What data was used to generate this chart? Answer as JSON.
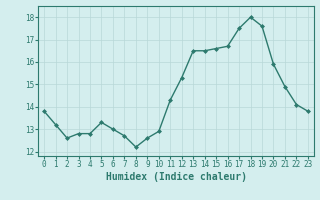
{
  "x": [
    0,
    1,
    2,
    3,
    4,
    5,
    6,
    7,
    8,
    9,
    10,
    11,
    12,
    13,
    14,
    15,
    16,
    17,
    18,
    19,
    20,
    21,
    22,
    23
  ],
  "y": [
    13.8,
    13.2,
    12.6,
    12.8,
    12.8,
    13.3,
    13.0,
    12.7,
    12.2,
    12.6,
    12.9,
    14.3,
    15.3,
    16.5,
    16.5,
    16.6,
    16.7,
    17.5,
    18.0,
    17.6,
    15.9,
    14.9,
    14.1,
    13.8
  ],
  "line_color": "#2d7a6e",
  "marker": "D",
  "markersize": 2.0,
  "linewidth": 1.0,
  "xlabel": "Humidex (Indice chaleur)",
  "xlabel_fontsize": 7,
  "xlabel_fontweight": "bold",
  "bg_color": "#d4eeee",
  "grid_color": "#b8d8d8",
  "axis_color": "#2d7a6e",
  "tick_color": "#2d7a6e",
  "ylim": [
    11.8,
    18.5
  ],
  "xlim": [
    -0.5,
    23.5
  ],
  "yticks": [
    12,
    13,
    14,
    15,
    16,
    17,
    18
  ],
  "xticks": [
    0,
    1,
    2,
    3,
    4,
    5,
    6,
    7,
    8,
    9,
    10,
    11,
    12,
    13,
    14,
    15,
    16,
    17,
    18,
    19,
    20,
    21,
    22,
    23
  ],
  "tick_fontsize": 5.5
}
